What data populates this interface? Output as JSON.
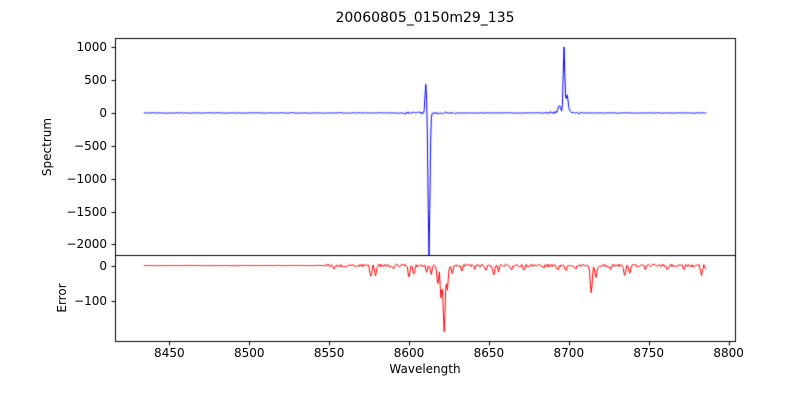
{
  "chart_data": [
    {
      "type": "line",
      "title": "20060805_0150m29_135",
      "ylabel": "Spectrum",
      "line_color": "#0000ff",
      "grid": false,
      "legend": null,
      "xlim": [
        8416,
        8804
      ],
      "ylim": [
        -2160,
        1140
      ],
      "x_range": [
        8434,
        8786
      ],
      "step": 0.5,
      "baseline": 0,
      "noise_amp": 5,
      "seed": 12345,
      "noisy_regions": [
        {
          "from": 8550,
          "to": 8596,
          "amp": 7
        },
        {
          "from": 8596,
          "to": 8632,
          "amp": 18
        },
        {
          "from": 8686,
          "to": 8708,
          "amp": 22
        }
      ],
      "peaks": [
        {
          "x": 8610.5,
          "y": 430,
          "w": 0.7
        },
        {
          "x": 8612.5,
          "y": -2150,
          "w": 0.8
        },
        {
          "x": 8694.0,
          "y": 130,
          "w": 1.2
        },
        {
          "x": 8697.0,
          "y": 1000,
          "w": 0.7
        },
        {
          "x": 8699.0,
          "y": 260,
          "w": 1.0
        }
      ],
      "ytick_values": [
        1000,
        500,
        0,
        -500,
        -1000,
        -1500,
        -2000
      ],
      "ytick_labels": [
        "1000",
        "500",
        "0",
        "−500",
        "−1000",
        "−1500",
        "−2000"
      ]
    },
    {
      "type": "line",
      "ylabel": "Error",
      "xlabel": "Wavelength",
      "line_color": "#ff0000",
      "grid": false,
      "legend": null,
      "xlim": [
        8416,
        8804
      ],
      "ylim": [
        -215,
        30
      ],
      "x_range": [
        8434,
        8786
      ],
      "step": 0.5,
      "baseline": 0,
      "noise_amp": 4,
      "flat_until": 8548,
      "flat_amp": 0.7,
      "seed": 999,
      "noisy_regions": [],
      "peaks": [
        {
          "x": 8553,
          "y": -9,
          "w": 1.0
        },
        {
          "x": 8560,
          "y": -7,
          "w": 1.0
        },
        {
          "x": 8576,
          "y": -34,
          "w": 0.8
        },
        {
          "x": 8579,
          "y": -28,
          "w": 0.8
        },
        {
          "x": 8590,
          "y": -10,
          "w": 0.8
        },
        {
          "x": 8600,
          "y": -33,
          "w": 0.8
        },
        {
          "x": 8603,
          "y": -27,
          "w": 0.7
        },
        {
          "x": 8611,
          "y": -18,
          "w": 0.7
        },
        {
          "x": 8614,
          "y": -22,
          "w": 0.7
        },
        {
          "x": 8618,
          "y": -55,
          "w": 0.7
        },
        {
          "x": 8620,
          "y": -95,
          "w": 0.7
        },
        {
          "x": 8622,
          "y": -185,
          "w": 0.9
        },
        {
          "x": 8624,
          "y": -70,
          "w": 0.7
        },
        {
          "x": 8627,
          "y": -25,
          "w": 0.7
        },
        {
          "x": 8633,
          "y": -14,
          "w": 0.7
        },
        {
          "x": 8641,
          "y": -10,
          "w": 0.7
        },
        {
          "x": 8648,
          "y": -16,
          "w": 0.7
        },
        {
          "x": 8653,
          "y": -24,
          "w": 0.8
        },
        {
          "x": 8656,
          "y": -18,
          "w": 0.7
        },
        {
          "x": 8664,
          "y": -14,
          "w": 0.8
        },
        {
          "x": 8672,
          "y": -10,
          "w": 0.8
        },
        {
          "x": 8684,
          "y": -7,
          "w": 0.8
        },
        {
          "x": 8693,
          "y": -12,
          "w": 0.8
        },
        {
          "x": 8698,
          "y": -16,
          "w": 0.8
        },
        {
          "x": 8704,
          "y": -10,
          "w": 0.8
        },
        {
          "x": 8714,
          "y": -75,
          "w": 0.9
        },
        {
          "x": 8717,
          "y": -35,
          "w": 0.8
        },
        {
          "x": 8726,
          "y": -10,
          "w": 0.8
        },
        {
          "x": 8735,
          "y": -28,
          "w": 0.8
        },
        {
          "x": 8738,
          "y": -22,
          "w": 0.8
        },
        {
          "x": 8748,
          "y": -8,
          "w": 0.8
        },
        {
          "x": 8762,
          "y": -12,
          "w": 0.8
        },
        {
          "x": 8772,
          "y": -8,
          "w": 0.8
        },
        {
          "x": 8783,
          "y": -28,
          "w": 0.8
        },
        {
          "x": 8786,
          "y": -14,
          "w": 0.8
        }
      ],
      "xtick_values": [
        8450,
        8500,
        8550,
        8600,
        8650,
        8700,
        8750,
        8800
      ],
      "xtick_labels": [
        "8450",
        "8500",
        "8550",
        "8600",
        "8650",
        "8700",
        "8750",
        "8800"
      ],
      "ytick_values": [
        0,
        -100
      ],
      "ytick_labels": [
        "0",
        "−100"
      ]
    }
  ]
}
